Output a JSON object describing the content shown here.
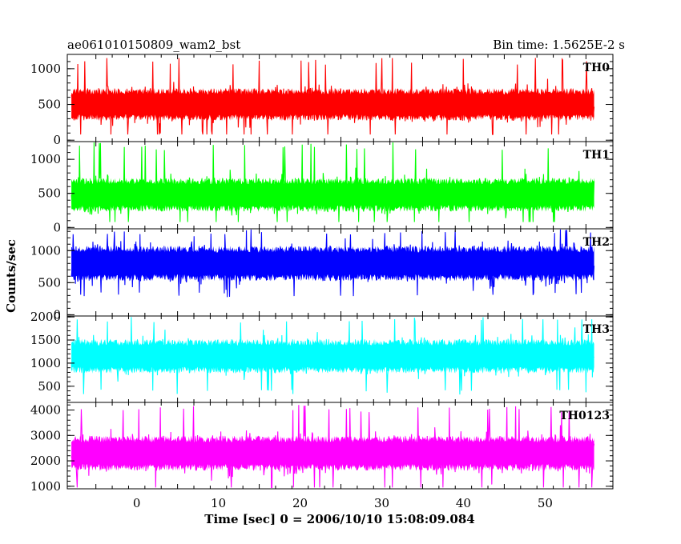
{
  "header": {
    "title": "ae061010150809_wam2_bst",
    "bin_time": "Bin time: 1.5625E-2 s"
  },
  "colors": {
    "background": "#ffffff",
    "axis": "#000000"
  },
  "chart_data": {
    "type": "line",
    "title": "ae061010150809_wam2_bst",
    "subtitle": "Bin time: 1.5625E-2 s",
    "xlabel": "Time [sec] 0 = 2006/10/10 15:08:09.084",
    "ylabel": "Counts/sec",
    "xlim": [
      -8.5,
      58.3
    ],
    "x_data_range": [
      -8.0,
      56.0
    ],
    "xticks": [
      0,
      10,
      20,
      30,
      40,
      50
    ],
    "xtick_labels": [
      "0",
      "10",
      "20",
      "30",
      "40",
      "50"
    ],
    "grid": false,
    "panels": [
      {
        "name": "TH0",
        "color": "#ff0000",
        "ylim": [
          -20,
          1200
        ],
        "yticks": [
          0,
          500,
          1000
        ],
        "ytick_labels": [
          "0",
          "500",
          "1000"
        ],
        "values_summary": {
          "mean": 500,
          "min": 80,
          "max": 1150
        }
      },
      {
        "name": "TH1",
        "color": "#00ff00",
        "ylim": [
          -20,
          1260
        ],
        "yticks": [
          0,
          500,
          1000
        ],
        "ytick_labels": [
          "0",
          "500",
          "1000"
        ],
        "values_summary": {
          "mean": 480,
          "min": 80,
          "max": 1250
        }
      },
      {
        "name": "TH2",
        "color": "#0000ff",
        "ylim": [
          -20,
          1340
        ],
        "yticks": [
          0,
          500,
          1000
        ],
        "ytick_labels": [
          "0",
          "500",
          "1000"
        ],
        "values_summary": {
          "mean": 800,
          "min": 40,
          "max": 1330
        }
      },
      {
        "name": "TH3",
        "color": "#00ffff",
        "ylim": [
          150,
          2020
        ],
        "yticks": [
          500,
          1000,
          1500,
          2000
        ],
        "ytick_labels": [
          "500",
          "1000",
          "1500",
          "2000"
        ],
        "values_summary": {
          "mean": 1150,
          "min": 250,
          "max": 2000
        }
      },
      {
        "name": "TH0123",
        "color": "#ff00ff",
        "ylim": [
          900,
          4300
        ],
        "yticks": [
          1000,
          2000,
          3000,
          4000
        ],
        "ytick_labels": [
          "1000",
          "2000",
          "3000",
          "4000"
        ],
        "values_summary": {
          "mean": 2300,
          "min": 950,
          "max": 4200
        }
      }
    ]
  }
}
